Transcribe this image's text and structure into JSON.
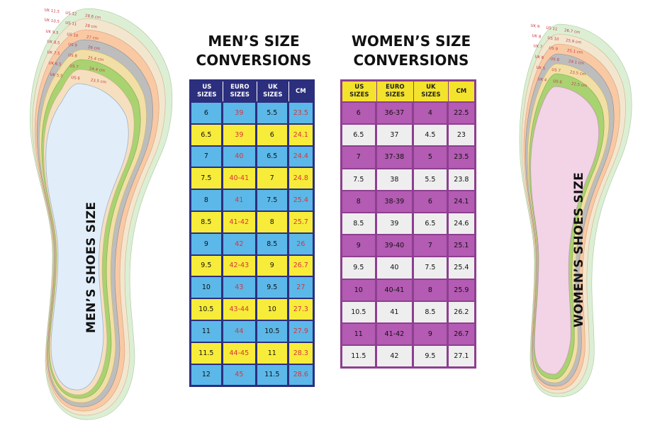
{
  "men_title": {
    "line1": "MEN’S SIZE",
    "line2": "CONVERSIONS"
  },
  "women_title": {
    "line1": "WOMEN’S SIZE",
    "line2": "CONVERSIONS"
  },
  "men_insole_title": "MEN’S SHOES SIZE",
  "women_insole_title": "WOMEN’S SHOES SIZE",
  "men_table": {
    "headers": [
      [
        "US",
        "SIZES"
      ],
      [
        "EURO",
        "SIZES"
      ],
      [
        "UK",
        "SIZES"
      ],
      [
        "CM",
        ""
      ]
    ],
    "rows": [
      [
        "6",
        "39",
        "5.5",
        "23.5"
      ],
      [
        "6.5",
        "39",
        "6",
        "24.1"
      ],
      [
        "7",
        "40",
        "6.5",
        "24.4"
      ],
      [
        "7.5",
        "40-41",
        "7",
        "24.8"
      ],
      [
        "8",
        "41",
        "7.5",
        "25.4"
      ],
      [
        "8.5",
        "41-42",
        "8",
        "25.7"
      ],
      [
        "9",
        "42",
        "8.5",
        "26"
      ],
      [
        "9.5",
        "42-43",
        "9",
        "26.7"
      ],
      [
        "10",
        "43",
        "9.5",
        "27"
      ],
      [
        "10.5",
        "43-44",
        "10",
        "27.3"
      ],
      [
        "11",
        "44",
        "10.5",
        "27.9"
      ],
      [
        "11.5",
        "44-45",
        "11",
        "28.3"
      ],
      [
        "12",
        "45",
        "11.5",
        "28.6"
      ]
    ]
  },
  "women_table": {
    "headers": [
      [
        "US",
        "SIZES"
      ],
      [
        "EURO",
        "SIZES"
      ],
      [
        "UK",
        "SIZES"
      ],
      [
        "CM",
        ""
      ]
    ],
    "rows": [
      [
        "6",
        "36-37",
        "4",
        "22.5"
      ],
      [
        "6.5",
        "37",
        "4.5",
        "23"
      ],
      [
        "7",
        "37-38",
        "5",
        "23.5"
      ],
      [
        "7.5",
        "38",
        "5.5",
        "23.8"
      ],
      [
        "8",
        "38-39",
        "6",
        "24.1"
      ],
      [
        "8.5",
        "39",
        "6.5",
        "24.6"
      ],
      [
        "9",
        "39-40",
        "7",
        "25.1"
      ],
      [
        "9.5",
        "40",
        "7.5",
        "25.4"
      ],
      [
        "10",
        "40-41",
        "8",
        "25.9"
      ],
      [
        "10.5",
        "41",
        "8.5",
        "26.2"
      ],
      [
        "11",
        "41-42",
        "9",
        "26.7"
      ],
      [
        "11.5",
        "42",
        "9.5",
        "27.1"
      ]
    ]
  },
  "men_insole_labels": [
    [
      "UK 11.5",
      "US 12",
      "28.6 cm"
    ],
    [
      "UK 10.5",
      "US 11",
      "28 cm"
    ],
    [
      "UK 9.5",
      "US 10",
      "27 cm"
    ],
    [
      "UK 8.5",
      "US 9",
      "26 cm"
    ],
    [
      "UK 7.5",
      "US 8",
      "25.4 cm"
    ],
    [
      "UK 6.5",
      "US 7",
      "24.4 cm"
    ],
    [
      "UK 5.5",
      "US 6",
      "23.5 cm"
    ]
  ],
  "women_insole_labels": [
    [
      "UK 9",
      "US 11",
      "26.7 cm"
    ],
    [
      "UK 8",
      "US 10",
      "25.9 cm"
    ],
    [
      "UK 7",
      "US 9",
      "25.1 cm"
    ],
    [
      "UK 6",
      "US 8",
      "24.1 cm"
    ],
    [
      "UK 5",
      "US 7",
      "23.5 cm"
    ],
    [
      "UK 4",
      "US 6",
      "22.5 cm"
    ]
  ],
  "colors": {
    "men_header": "#2c2e7e",
    "men_blue": "#5cb8e8",
    "men_yellow": "#f7ec3a",
    "men_euro_text": "#d9343b",
    "women_header": "#f4e32c",
    "women_purple": "#b45bb3",
    "women_light": "#eeeeee",
    "women_border": "#8d3f8f",
    "men_insole_fill": "#e1eefa",
    "women_insole_fill": "#f3d3e6"
  }
}
